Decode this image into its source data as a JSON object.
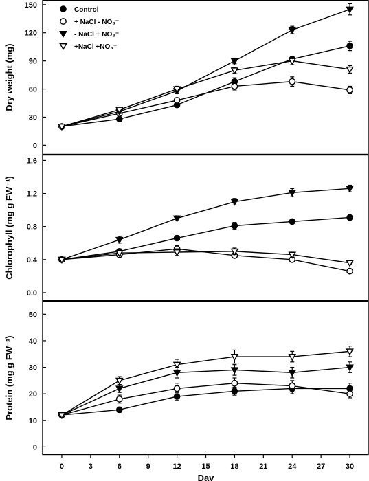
{
  "chart_data": [
    {
      "type": "line",
      "title": "",
      "xlabel": "",
      "ylabel": "Dry weight (mg)",
      "x": [
        0,
        6,
        12,
        18,
        24,
        30
      ],
      "xlim": [
        -2,
        32
      ],
      "ylim": [
        -10,
        155
      ],
      "yticks": [
        0,
        30,
        60,
        90,
        120,
        150
      ],
      "legend": {
        "placement": "top-left",
        "entries": [
          {
            "text": "Control",
            "marker": "filled-circle"
          },
          {
            "text": "+ NaCl - NO₃⁻",
            "marker": "open-circle"
          },
          {
            "text": "- NaCl + NO₃⁻",
            "marker": "filled-triangle-down"
          },
          {
            "text": "+NaCl +NO₃⁻",
            "marker": "open-triangle-down"
          }
        ]
      },
      "series": [
        {
          "marker": "filled-circle",
          "values": [
            20,
            28,
            43,
            68,
            92,
            106
          ],
          "errors": [
            1,
            2,
            2,
            4,
            3,
            5
          ]
        },
        {
          "marker": "open-circle",
          "values": [
            20,
            34,
            48,
            63,
            68,
            59
          ],
          "errors": [
            1,
            2,
            2,
            4,
            5,
            4
          ]
        },
        {
          "marker": "filled-triangle-down",
          "values": [
            20,
            36,
            58,
            90,
            123,
            145
          ],
          "errors": [
            1,
            2,
            3,
            3,
            4,
            6
          ]
        },
        {
          "marker": "open-triangle-down",
          "values": [
            20,
            38,
            60,
            80,
            90,
            81
          ],
          "errors": [
            1,
            2,
            3,
            3,
            4,
            4
          ]
        }
      ]
    },
    {
      "type": "line",
      "title": "",
      "xlabel": "",
      "ylabel": "Chlorophyll (mg g FW⁻¹)",
      "x": [
        0,
        6,
        12,
        18,
        24,
        30
      ],
      "xlim": [
        -2,
        32
      ],
      "ylim": [
        -0.1,
        1.67
      ],
      "yticks": [
        0.0,
        0.4,
        0.8,
        1.2,
        1.6
      ],
      "series": [
        {
          "marker": "filled-circle",
          "values": [
            0.4,
            0.5,
            0.66,
            0.81,
            0.86,
            0.91
          ],
          "errors": [
            0.01,
            0.03,
            0.03,
            0.04,
            0.02,
            0.04
          ]
        },
        {
          "marker": "open-circle",
          "values": [
            0.4,
            0.46,
            0.53,
            0.45,
            0.4,
            0.26
          ],
          "errors": [
            0.01,
            0.03,
            0.04,
            0.03,
            0.03,
            0.02
          ]
        },
        {
          "marker": "filled-triangle-down",
          "values": [
            0.4,
            0.64,
            0.9,
            1.1,
            1.21,
            1.26
          ],
          "errors": [
            0.01,
            0.04,
            0.03,
            0.04,
            0.05,
            0.04
          ]
        },
        {
          "marker": "open-triangle-down",
          "values": [
            0.4,
            0.48,
            0.49,
            0.5,
            0.46,
            0.36
          ],
          "errors": [
            0.01,
            0.03,
            0.04,
            0.04,
            0.03,
            0.02
          ]
        }
      ]
    },
    {
      "type": "line",
      "title": "",
      "xlabel": "Day",
      "ylabel": "Protein (mg g FW⁻¹)",
      "x": [
        0,
        6,
        12,
        18,
        24,
        30
      ],
      "xlim": [
        -2,
        32
      ],
      "xticks": [
        0,
        3,
        6,
        9,
        12,
        15,
        18,
        21,
        24,
        27,
        30
      ],
      "ylim": [
        -3,
        55
      ],
      "yticks": [
        0,
        10,
        20,
        30,
        40,
        50
      ],
      "series": [
        {
          "marker": "filled-circle",
          "values": [
            12,
            14,
            19,
            21,
            22,
            22
          ],
          "errors": [
            0.5,
            1,
            1.5,
            1.5,
            2,
            2
          ]
        },
        {
          "marker": "open-circle",
          "values": [
            12,
            18,
            22,
            24,
            23,
            20
          ],
          "errors": [
            0.5,
            1.5,
            2,
            2,
            2,
            1.5
          ]
        },
        {
          "marker": "filled-triangle-down",
          "values": [
            12,
            22,
            28,
            29,
            28,
            30
          ],
          "errors": [
            0.5,
            1.5,
            2,
            2,
            2,
            2
          ]
        },
        {
          "marker": "open-triangle-down",
          "values": [
            12,
            25,
            31,
            34,
            34,
            36
          ],
          "errors": [
            0.5,
            1.5,
            2,
            2.5,
            2,
            2
          ]
        }
      ]
    }
  ]
}
